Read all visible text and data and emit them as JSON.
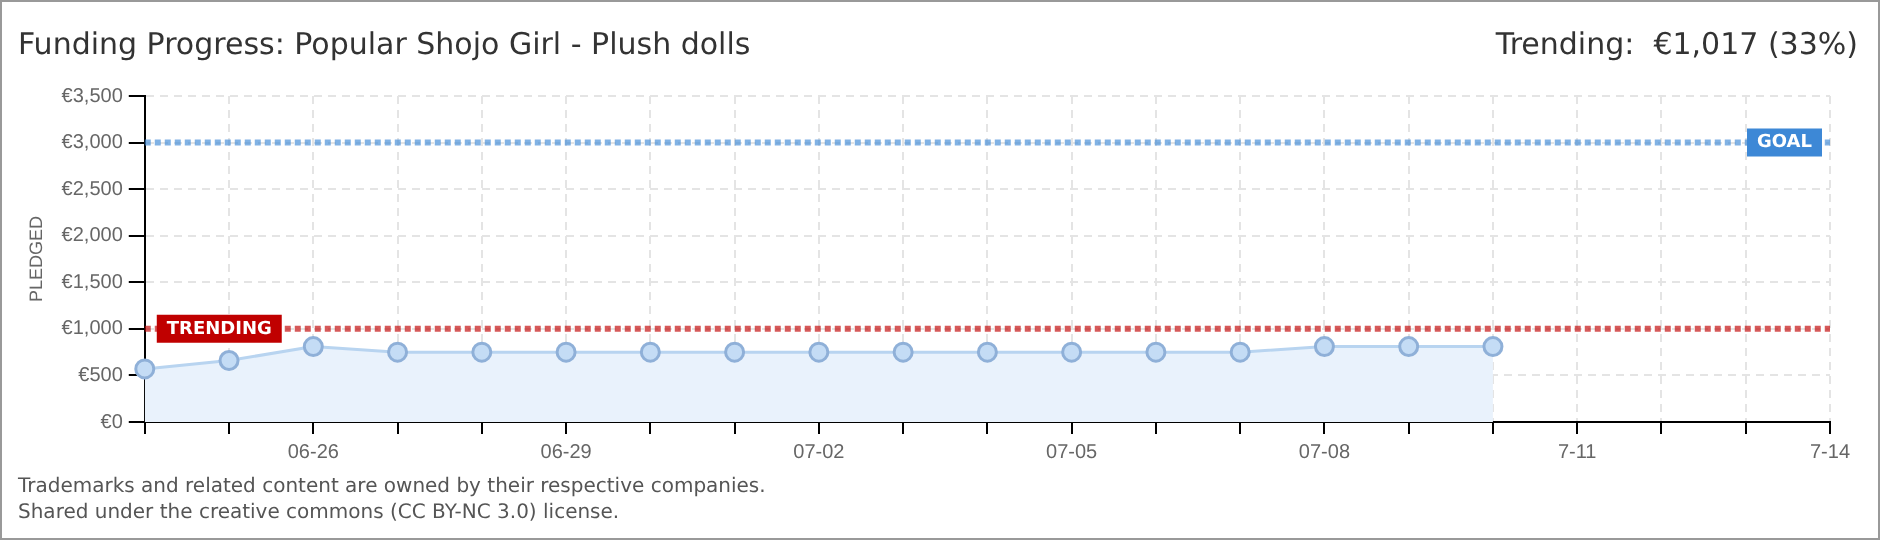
{
  "chart_data": {
    "type": "area",
    "title": "Funding Progress: Popular Shojo Girl - Plush dolls",
    "subtitle": "Trending:  €1,017 (33%)",
    "ylabel": "PLEDGED",
    "categories": [
      null,
      null,
      "06-26",
      null,
      null,
      "06-29",
      null,
      null,
      "07-02",
      null,
      null,
      "07-05",
      null,
      null,
      "07-08",
      null,
      null,
      "7-11",
      null,
      null,
      "7-14"
    ],
    "series": [
      {
        "color": "#b8d4f0",
        "values": [
          570,
          660,
          810,
          750,
          750,
          750,
          750,
          750,
          750,
          750,
          750,
          750,
          750,
          750,
          810,
          810,
          810,
          null,
          null,
          null,
          null
        ]
      }
    ],
    "ylim": [
      0,
      3500
    ],
    "yticks": [
      {
        "value": 0,
        "label": "€0"
      },
      {
        "value": 500,
        "label": "€500"
      },
      {
        "value": 1000,
        "label": "€1,000"
      },
      {
        "value": 1500,
        "label": "€1,500"
      },
      {
        "value": 2000,
        "label": "€2,000"
      },
      {
        "value": 2500,
        "label": "€2,500"
      },
      {
        "value": 3000,
        "label": "€3,000"
      },
      {
        "value": 3500,
        "label": "€3,500"
      }
    ],
    "ref_lines": [
      {
        "axis": "y",
        "value": 3000,
        "label": "GOAL",
        "color": "#3d88d6",
        "line_style": "dotted"
      },
      {
        "axis": "y",
        "value": 1000,
        "label": "TRENDING",
        "color": "#c00000",
        "line_style": "dotted"
      }
    ],
    "grid": true,
    "marker": "circle",
    "legend": false,
    "annotations": [
      "Trademarks and related content are owned by their respective companies.",
      "Shared under the creative commons (CC BY-NC 3.0) license."
    ]
  }
}
